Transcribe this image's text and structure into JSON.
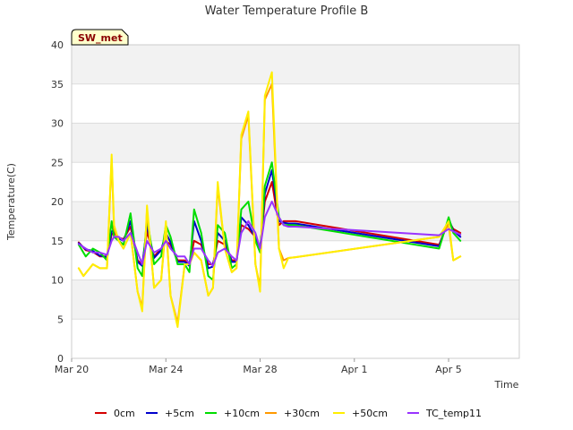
{
  "chart_data": {
    "type": "line",
    "title": "Water Temperature Profile B",
    "xlabel": "Time",
    "ylabel": "Temperature(C)",
    "badge": "SW_met",
    "ylim": [
      0,
      40
    ],
    "yticks": [
      0,
      5,
      10,
      15,
      20,
      25,
      30,
      35,
      40
    ],
    "xlim": [
      0,
      19
    ],
    "xticks": [
      {
        "label": "Mar 20",
        "value": 0
      },
      {
        "label": "Mar 24",
        "value": 4
      },
      {
        "label": "Mar 28",
        "value": 8
      },
      {
        "label": "Apr 1",
        "value": 12
      },
      {
        "label": "Apr 5",
        "value": 16
      }
    ],
    "grid": true,
    "legend_position": "bottom",
    "series": [
      {
        "name": "0cm",
        "color": "#d40000",
        "x": [
          0.3,
          0.6,
          0.9,
          1.2,
          1.5,
          1.7,
          1.8,
          2.0,
          2.2,
          2.5,
          2.8,
          3.0,
          3.2,
          3.5,
          3.8,
          4.0,
          4.2,
          4.5,
          4.8,
          5.0,
          5.2,
          5.5,
          5.8,
          6.0,
          6.2,
          6.5,
          6.8,
          7.0,
          7.2,
          7.5,
          7.8,
          8.0,
          8.2,
          8.5,
          8.8,
          9.0,
          9.2,
          9.5,
          15.6,
          16.0,
          16.2,
          16.5
        ],
        "y": [
          14.8,
          13.8,
          13.6,
          13.0,
          13.0,
          15.8,
          16.0,
          15.4,
          15.2,
          16.8,
          12.5,
          12.0,
          16.2,
          13.0,
          14.0,
          15.0,
          14.5,
          12.5,
          12.5,
          12.0,
          15.0,
          14.5,
          12.0,
          12.0,
          15.0,
          14.5,
          12.5,
          12.5,
          17.0,
          16.5,
          15.5,
          14.0,
          20.0,
          22.5,
          17.0,
          17.5,
          17.5,
          17.5,
          14.5,
          17.5,
          16.5,
          16.0
        ]
      },
      {
        "name": "+5cm",
        "color": "#0000cc",
        "x": [
          0.3,
          0.6,
          0.9,
          1.2,
          1.5,
          1.7,
          1.8,
          2.0,
          2.2,
          2.5,
          2.8,
          3.0,
          3.2,
          3.5,
          3.8,
          4.0,
          4.2,
          4.5,
          4.8,
          5.0,
          5.2,
          5.5,
          5.8,
          6.0,
          6.2,
          6.5,
          6.8,
          7.0,
          7.2,
          7.5,
          7.8,
          8.0,
          8.2,
          8.5,
          8.8,
          9.0,
          9.2,
          9.5,
          15.6,
          16.0,
          16.2,
          16.5
        ],
        "y": [
          14.7,
          13.9,
          13.7,
          13.1,
          12.9,
          16.2,
          16.3,
          15.3,
          15.0,
          17.5,
          12.3,
          11.8,
          17.0,
          12.8,
          13.8,
          16.0,
          14.8,
          12.3,
          12.3,
          11.8,
          17.5,
          15.0,
          11.5,
          11.7,
          16.0,
          15.0,
          12.3,
          12.3,
          18.0,
          17.0,
          15.4,
          13.8,
          21.0,
          24.0,
          17.5,
          17.3,
          17.2,
          17.2,
          14.3,
          17.8,
          16.3,
          15.5
        ]
      },
      {
        "name": "+10cm",
        "color": "#00dd00",
        "x": [
          0.3,
          0.6,
          0.9,
          1.2,
          1.5,
          1.7,
          1.8,
          2.0,
          2.2,
          2.5,
          2.8,
          3.0,
          3.2,
          3.5,
          3.8,
          4.0,
          4.2,
          4.5,
          4.8,
          5.0,
          5.2,
          5.5,
          5.8,
          6.0,
          6.2,
          6.5,
          6.8,
          7.0,
          7.2,
          7.5,
          7.8,
          8.0,
          8.2,
          8.5,
          8.8,
          9.0,
          9.2,
          9.5,
          15.6,
          16.0,
          16.2,
          16.5
        ],
        "y": [
          14.5,
          13.0,
          14.0,
          13.5,
          12.5,
          17.5,
          15.5,
          15.0,
          14.5,
          18.5,
          11.5,
          10.5,
          18.0,
          12.0,
          13.0,
          17.0,
          15.5,
          12.0,
          12.0,
          11.0,
          19.0,
          16.0,
          10.5,
          10.0,
          17.0,
          16.0,
          11.5,
          12.0,
          19.0,
          20.0,
          15.0,
          13.5,
          22.0,
          25.0,
          18.0,
          17.0,
          17.0,
          17.0,
          14.0,
          18.0,
          16.0,
          15.0
        ]
      },
      {
        "name": "+30cm",
        "color": "#ff9900",
        "x": [
          0.3,
          0.5,
          0.9,
          1.2,
          1.5,
          1.7,
          1.8,
          2.0,
          2.2,
          2.5,
          2.8,
          3.0,
          3.2,
          3.5,
          3.8,
          4.0,
          4.2,
          4.5,
          4.8,
          5.0,
          5.2,
          5.5,
          5.8,
          6.0,
          6.2,
          6.5,
          6.8,
          7.0,
          7.2,
          7.5,
          7.8,
          8.0,
          8.2,
          8.5,
          8.8,
          9.0,
          9.2,
          9.5,
          15.6,
          16.0,
          16.2,
          16.5
        ],
        "y": [
          11.5,
          10.5,
          12.0,
          11.5,
          11.5,
          25.5,
          16.5,
          15.0,
          14.0,
          16.0,
          8.5,
          6.5,
          19.0,
          9.0,
          10.0,
          17.0,
          8.0,
          4.5,
          12.0,
          12.0,
          13.5,
          12.5,
          8.0,
          9.0,
          22.0,
          14.0,
          11.0,
          11.5,
          28.0,
          31.0,
          12.0,
          9.0,
          33.0,
          35.0,
          14.0,
          12.5,
          12.8,
          12.9,
          15.5,
          17.0,
          12.5,
          13.0
        ]
      },
      {
        "name": "+50cm",
        "color": "#ffee00",
        "x": [
          0.3,
          0.5,
          0.9,
          1.2,
          1.5,
          1.7,
          1.8,
          2.0,
          2.2,
          2.5,
          2.8,
          3.0,
          3.2,
          3.5,
          3.8,
          4.0,
          4.2,
          4.5,
          4.8,
          5.0,
          5.2,
          5.5,
          5.8,
          6.0,
          6.2,
          6.5,
          6.8,
          7.0,
          7.2,
          7.5,
          7.8,
          8.0,
          8.2,
          8.5,
          8.8,
          9.0,
          9.2,
          9.5,
          15.6,
          16.0,
          16.2,
          16.5
        ],
        "y": [
          11.5,
          10.5,
          12.0,
          11.5,
          11.5,
          26.0,
          17.0,
          15.0,
          14.0,
          16.0,
          8.5,
          6.0,
          19.5,
          9.0,
          10.0,
          17.5,
          8.0,
          4.0,
          12.0,
          12.0,
          13.5,
          12.5,
          8.0,
          9.0,
          22.5,
          14.0,
          11.0,
          11.5,
          28.5,
          31.5,
          12.0,
          8.5,
          33.5,
          36.5,
          14.0,
          11.5,
          12.8,
          12.9,
          15.5,
          17.5,
          12.5,
          13.0
        ]
      },
      {
        "name": "TC_temp11",
        "color": "#9933ff",
        "x": [
          0.3,
          0.6,
          0.9,
          1.2,
          1.5,
          1.7,
          1.8,
          2.0,
          2.2,
          2.5,
          2.8,
          3.0,
          3.2,
          3.5,
          3.8,
          4.0,
          4.2,
          4.5,
          4.8,
          5.0,
          5.2,
          5.5,
          5.8,
          6.0,
          6.2,
          6.5,
          6.8,
          7.0,
          7.2,
          7.5,
          7.8,
          8.0,
          8.2,
          8.5,
          8.8,
          9.0,
          9.2,
          9.5,
          15.6,
          16.0,
          16.2,
          16.5
        ],
        "y": [
          14.6,
          14.0,
          13.5,
          13.5,
          13.2,
          15.0,
          15.5,
          15.5,
          15.0,
          16.0,
          13.5,
          12.0,
          15.0,
          13.5,
          14.0,
          15.0,
          14.0,
          13.0,
          13.0,
          12.0,
          14.0,
          14.0,
          12.5,
          11.8,
          13.5,
          14.0,
          13.0,
          12.5,
          16.0,
          17.5,
          16.0,
          14.0,
          18.0,
          20.0,
          18.0,
          17.0,
          16.8,
          16.8,
          15.7,
          16.5,
          16.2,
          15.8
        ]
      }
    ]
  }
}
